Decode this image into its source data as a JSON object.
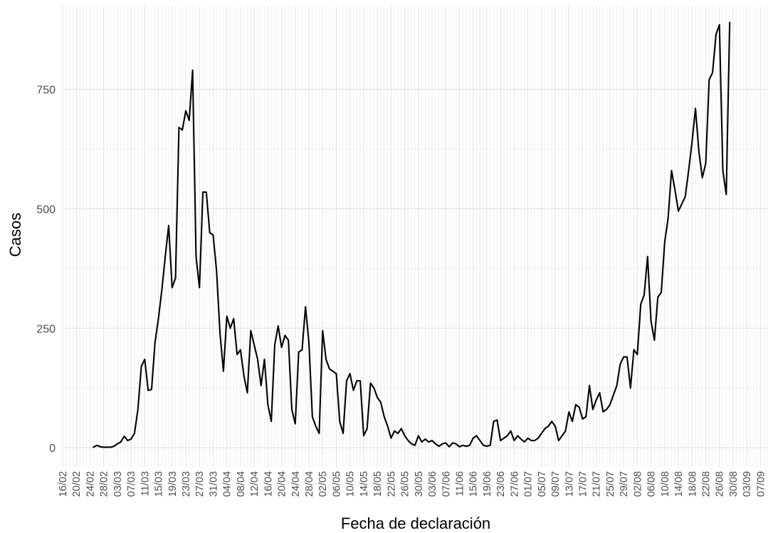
{
  "chart_data": {
    "type": "line",
    "title": "",
    "xlabel": "Fecha de declaración",
    "ylabel": "Casos",
    "ylim": [
      -40,
      925
    ],
    "y_ticks": [
      0,
      250,
      500,
      750
    ],
    "x_tick_labels": [
      "16/02",
      "20/02",
      "24/02",
      "28/02",
      "03/03",
      "07/03",
      "11/03",
      "15/03",
      "19/03",
      "23/03",
      "27/03",
      "31/03",
      "04/04",
      "08/04",
      "12/04",
      "16/04",
      "20/04",
      "24/04",
      "28/04",
      "02/05",
      "06/05",
      "10/05",
      "14/05",
      "18/05",
      "22/05",
      "26/05",
      "30/05",
      "03/06",
      "07/06",
      "11/06",
      "15/06",
      "19/06",
      "23/06",
      "27/06",
      "01/07",
      "05/07",
      "09/07",
      "13/07",
      "17/07",
      "21/07",
      "25/07",
      "29/07",
      "02/08",
      "06/08",
      "10/08",
      "14/08",
      "18/08",
      "22/08",
      "26/08",
      "30/08",
      "03/09",
      "07/09"
    ],
    "x_start": "16/02",
    "x_end": "09/09",
    "grid": true,
    "series": [
      {
        "color": "#000000",
        "points": [
          [
            "25/02",
            1
          ],
          [
            "26/02",
            5
          ],
          [
            "27/02",
            2
          ],
          [
            "28/02",
            1
          ],
          [
            "29/02",
            1
          ],
          [
            "01/03",
            1
          ],
          [
            "02/03",
            3
          ],
          [
            "03/03",
            8
          ],
          [
            "04/03",
            12
          ],
          [
            "05/03",
            24
          ],
          [
            "06/03",
            15
          ],
          [
            "07/03",
            18
          ],
          [
            "08/03",
            30
          ],
          [
            "09/03",
            80
          ],
          [
            "10/03",
            170
          ],
          [
            "11/03",
            185
          ],
          [
            "12/03",
            120
          ],
          [
            "13/03",
            122
          ],
          [
            "14/03",
            220
          ],
          [
            "15/03",
            270
          ],
          [
            "16/03",
            330
          ],
          [
            "17/03",
            400
          ],
          [
            "18/03",
            465
          ],
          [
            "19/03",
            335
          ],
          [
            "20/03",
            355
          ],
          [
            "21/03",
            670
          ],
          [
            "22/03",
            665
          ],
          [
            "23/03",
            705
          ],
          [
            "24/03",
            685
          ],
          [
            "25/03",
            790
          ],
          [
            "26/03",
            400
          ],
          [
            "27/03",
            335
          ],
          [
            "28/03",
            535
          ],
          [
            "29/03",
            535
          ],
          [
            "30/03",
            450
          ],
          [
            "31/03",
            445
          ],
          [
            "01/04",
            370
          ],
          [
            "02/04",
            240
          ],
          [
            "03/04",
            160
          ],
          [
            "04/04",
            275
          ],
          [
            "05/04",
            250
          ],
          [
            "06/04",
            270
          ],
          [
            "07/04",
            195
          ],
          [
            "08/04",
            205
          ],
          [
            "09/04",
            150
          ],
          [
            "10/04",
            115
          ],
          [
            "11/04",
            245
          ],
          [
            "12/04",
            215
          ],
          [
            "13/04",
            185
          ],
          [
            "14/04",
            130
          ],
          [
            "15/04",
            185
          ],
          [
            "16/04",
            90
          ],
          [
            "17/04",
            55
          ],
          [
            "18/04",
            215
          ],
          [
            "19/04",
            255
          ],
          [
            "20/04",
            210
          ],
          [
            "21/04",
            235
          ],
          [
            "22/04",
            225
          ],
          [
            "23/04",
            80
          ],
          [
            "24/04",
            50
          ],
          [
            "25/04",
            200
          ],
          [
            "26/04",
            205
          ],
          [
            "27/04",
            295
          ],
          [
            "28/04",
            220
          ],
          [
            "29/04",
            65
          ],
          [
            "30/04",
            45
          ],
          [
            "01/05",
            30
          ],
          [
            "02/05",
            245
          ],
          [
            "03/05",
            185
          ],
          [
            "04/05",
            165
          ],
          [
            "05/05",
            160
          ],
          [
            "06/05",
            155
          ],
          [
            "07/05",
            55
          ],
          [
            "08/05",
            30
          ],
          [
            "09/05",
            140
          ],
          [
            "10/05",
            155
          ],
          [
            "11/05",
            120
          ],
          [
            "12/05",
            140
          ],
          [
            "13/05",
            140
          ],
          [
            "14/05",
            25
          ],
          [
            "15/05",
            40
          ],
          [
            "16/05",
            135
          ],
          [
            "17/05",
            125
          ],
          [
            "18/05",
            105
          ],
          [
            "19/05",
            95
          ],
          [
            "20/05",
            65
          ],
          [
            "21/05",
            45
          ],
          [
            "22/05",
            20
          ],
          [
            "23/05",
            35
          ],
          [
            "24/05",
            30
          ],
          [
            "25/05",
            40
          ],
          [
            "26/05",
            25
          ],
          [
            "27/05",
            15
          ],
          [
            "28/05",
            8
          ],
          [
            "29/05",
            5
          ],
          [
            "30/05",
            25
          ],
          [
            "31/05",
            12
          ],
          [
            "01/06",
            18
          ],
          [
            "02/06",
            12
          ],
          [
            "03/06",
            15
          ],
          [
            "04/06",
            8
          ],
          [
            "05/06",
            3
          ],
          [
            "06/06",
            8
          ],
          [
            "07/06",
            10
          ],
          [
            "08/06",
            2
          ],
          [
            "09/06",
            10
          ],
          [
            "10/06",
            8
          ],
          [
            "11/06",
            2
          ],
          [
            "12/06",
            5
          ],
          [
            "13/06",
            3
          ],
          [
            "14/06",
            5
          ],
          [
            "15/06",
            20
          ],
          [
            "16/06",
            25
          ],
          [
            "17/06",
            15
          ],
          [
            "18/06",
            5
          ],
          [
            "19/06",
            3
          ],
          [
            "20/06",
            5
          ],
          [
            "21/06",
            55
          ],
          [
            "22/06",
            58
          ],
          [
            "23/06",
            15
          ],
          [
            "24/06",
            20
          ],
          [
            "25/06",
            25
          ],
          [
            "26/06",
            35
          ],
          [
            "27/06",
            15
          ],
          [
            "28/06",
            25
          ],
          [
            "29/06",
            18
          ],
          [
            "30/06",
            12
          ],
          [
            "01/07",
            20
          ],
          [
            "02/07",
            15
          ],
          [
            "03/07",
            15
          ],
          [
            "04/07",
            20
          ],
          [
            "05/07",
            30
          ],
          [
            "06/07",
            40
          ],
          [
            "07/07",
            45
          ],
          [
            "08/07",
            55
          ],
          [
            "09/07",
            45
          ],
          [
            "10/07",
            15
          ],
          [
            "11/07",
            25
          ],
          [
            "12/07",
            35
          ],
          [
            "13/07",
            75
          ],
          [
            "14/07",
            55
          ],
          [
            "15/07",
            90
          ],
          [
            "16/07",
            85
          ],
          [
            "17/07",
            60
          ],
          [
            "18/07",
            65
          ],
          [
            "19/07",
            130
          ],
          [
            "20/07",
            80
          ],
          [
            "21/07",
            100
          ],
          [
            "22/07",
            115
          ],
          [
            "23/07",
            75
          ],
          [
            "24/07",
            80
          ],
          [
            "25/07",
            90
          ],
          [
            "26/07",
            110
          ],
          [
            "27/07",
            130
          ],
          [
            "28/07",
            175
          ],
          [
            "29/07",
            190
          ],
          [
            "30/07",
            190
          ],
          [
            "31/07",
            125
          ],
          [
            "01/08",
            205
          ],
          [
            "02/08",
            195
          ],
          [
            "03/08",
            300
          ],
          [
            "04/08",
            320
          ],
          [
            "05/08",
            400
          ],
          [
            "06/08",
            265
          ],
          [
            "07/08",
            225
          ],
          [
            "08/08",
            315
          ],
          [
            "09/08",
            325
          ],
          [
            "10/08",
            430
          ],
          [
            "11/08",
            480
          ],
          [
            "12/08",
            580
          ],
          [
            "13/08",
            540
          ],
          [
            "14/08",
            495
          ],
          [
            "15/08",
            510
          ],
          [
            "16/08",
            525
          ],
          [
            "17/08",
            580
          ],
          [
            "18/08",
            640
          ],
          [
            "19/08",
            710
          ],
          [
            "20/08",
            620
          ],
          [
            "21/08",
            565
          ],
          [
            "22/08",
            595
          ],
          [
            "23/08",
            770
          ],
          [
            "24/08",
            785
          ],
          [
            "25/08",
            865
          ],
          [
            "26/08",
            885
          ],
          [
            "27/08",
            580
          ],
          [
            "28/08",
            530
          ],
          [
            "29/08",
            890
          ]
        ]
      }
    ]
  }
}
